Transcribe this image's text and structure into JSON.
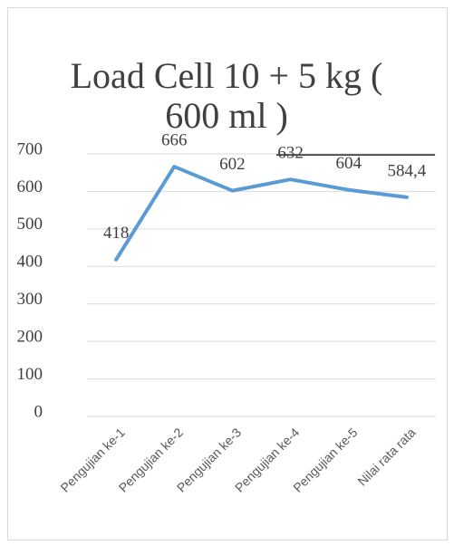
{
  "chart_data": {
    "type": "line",
    "title": "Load Cell 10 + 5 kg ( 600 ml )",
    "categories": [
      "Pengujian ke-1",
      "Pengujian ke-2",
      "Pengujian ke-3",
      "Pengujian ke-4",
      "Pengujian ke-5",
      "Nilai rata rata"
    ],
    "values": [
      418,
      666,
      602,
      632,
      604,
      584.4
    ],
    "value_labels": [
      "418",
      "666",
      "602",
      "632",
      "604",
      "584,4"
    ],
    "color": "#5b9bd5",
    "ylim": [
      0,
      700
    ],
    "yticks": [
      0,
      100,
      200,
      300,
      400,
      500,
      600,
      700
    ],
    "grid": true
  }
}
